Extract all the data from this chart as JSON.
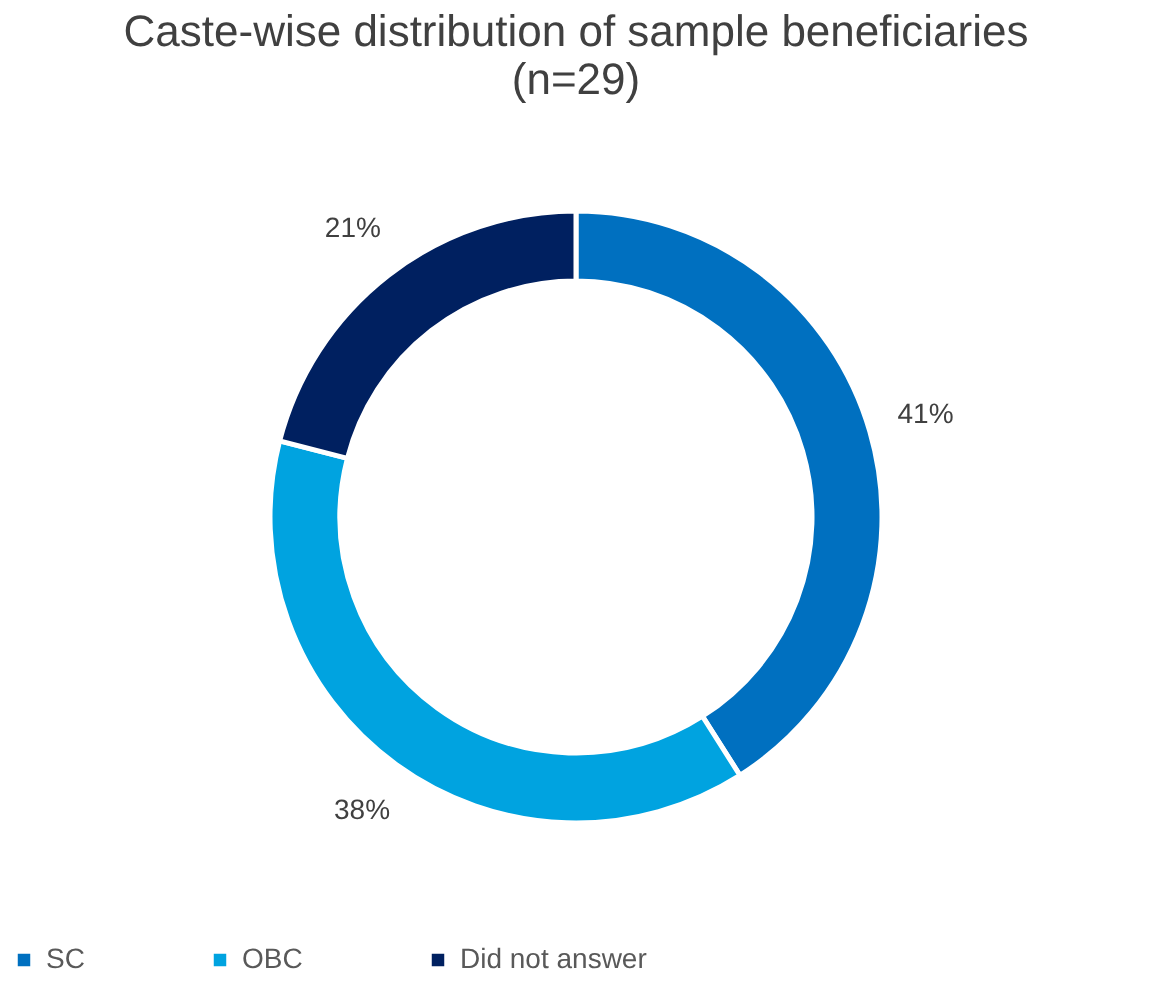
{
  "chart_data": {
    "type": "donut",
    "title": "Caste-wise distribution of sample beneficiaries (n=29)",
    "categories": [
      "SC",
      "OBC",
      "Did not answer"
    ],
    "values": [
      41,
      38,
      21
    ],
    "colors": [
      "#0070c0",
      "#00a3e0",
      "#002060"
    ],
    "value_labels": [
      "41%",
      "38%",
      "21%"
    ],
    "legend": "bottom"
  }
}
